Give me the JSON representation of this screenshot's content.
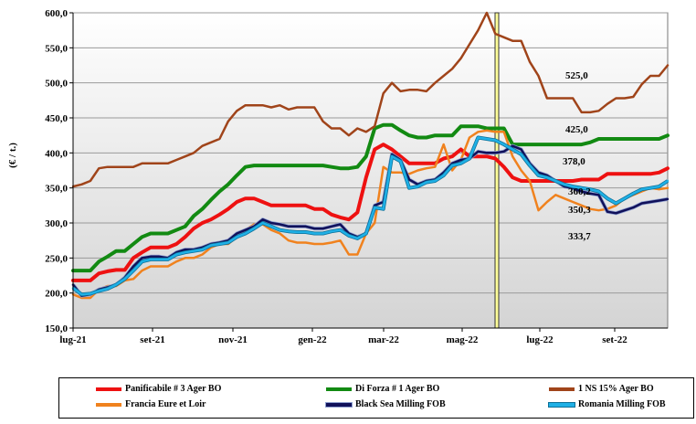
{
  "chart_data": {
    "type": "line",
    "ylabel": "(€ / t.)",
    "ylim": [
      150,
      600
    ],
    "yticks": [
      "150,0",
      "200,0",
      "250,0",
      "300,0",
      "350,0",
      "400,0",
      "450,0",
      "500,0",
      "550,0",
      "600,0"
    ],
    "ytick_values": [
      150,
      200,
      250,
      300,
      350,
      400,
      450,
      500,
      550,
      600
    ],
    "xlim": [
      0,
      56
    ],
    "xticks": [
      {
        "label": "lug-21",
        "pos": 0
      },
      {
        "label": "set-21",
        "pos": 8.6
      },
      {
        "label": "nov-21",
        "pos": 17.4
      },
      {
        "label": "gen-22",
        "pos": 26.1
      },
      {
        "label": "mar-22",
        "pos": 34.4
      },
      {
        "label": "mag-22",
        "pos": 43.0
      },
      {
        "label": "lug-22",
        "pos": 51.7
      },
      {
        "label": "set-22",
        "pos": 60.3
      }
    ],
    "highlight_band": [
      46.8,
      47.1
    ],
    "grid": true,
    "legend_position": "bottom",
    "annotations": [
      {
        "text": "525,0",
        "x": 56.2,
        "y": 510
      },
      {
        "text": "425,0",
        "x": 56.2,
        "y": 432
      },
      {
        "text": "378,0",
        "x": 56.2,
        "y": 386
      },
      {
        "text": "360,2",
        "x": 55.0,
        "y": 340
      },
      {
        "text": "350,3",
        "x": 55.2,
        "y": 320
      },
      {
        "text": "333,7",
        "x": 56.2,
        "y": 281
      }
    ],
    "series": [
      {
        "name": "Panificabile # 3 Ager BO",
        "color": "#ee1111",
        "width": 4,
        "values": [
          218,
          218,
          218,
          228,
          231,
          233,
          233,
          250,
          258,
          265,
          265,
          265,
          270,
          280,
          292,
          300,
          305,
          312,
          320,
          330,
          335,
          335,
          330,
          325,
          325,
          325,
          325,
          325,
          320,
          320,
          312,
          308,
          305,
          315,
          365,
          405,
          412,
          405,
          395,
          385,
          385,
          385,
          385,
          392,
          395,
          405,
          395,
          395,
          395,
          392,
          380,
          365,
          360,
          360,
          360,
          360,
          360,
          360,
          360,
          362,
          362,
          362,
          370,
          370,
          370,
          370,
          370,
          370,
          372,
          378
        ]
      },
      {
        "name": "Di Forza # 1 Ager BO",
        "color": "#128a12",
        "width": 4,
        "values": [
          232,
          232,
          232,
          245,
          252,
          260,
          260,
          270,
          280,
          285,
          285,
          285,
          290,
          295,
          310,
          320,
          333,
          345,
          355,
          368,
          380,
          382,
          382,
          382,
          382,
          382,
          382,
          382,
          382,
          382,
          380,
          378,
          378,
          380,
          395,
          435,
          440,
          440,
          432,
          425,
          422,
          422,
          425,
          425,
          425,
          438,
          438,
          438,
          435,
          435,
          435,
          412,
          412,
          412,
          412,
          412,
          412,
          412,
          412,
          412,
          415,
          420,
          420,
          420,
          420,
          420,
          420,
          420,
          420,
          425
        ]
      },
      {
        "name": "1 NS 15% Ager BO",
        "color": "#a0441a",
        "width": 2.5,
        "values": [
          352,
          355,
          360,
          378,
          380,
          380,
          380,
          380,
          385,
          385,
          385,
          385,
          390,
          395,
          400,
          410,
          415,
          420,
          445,
          460,
          468,
          468,
          468,
          465,
          468,
          462,
          465,
          465,
          465,
          445,
          435,
          435,
          425,
          435,
          430,
          438,
          485,
          500,
          488,
          490,
          490,
          488,
          500,
          510,
          520,
          535,
          555,
          575,
          600,
          570,
          565,
          560,
          560,
          530,
          510,
          478,
          478,
          478,
          478,
          458,
          458,
          460,
          470,
          478,
          478,
          480,
          498,
          510,
          510,
          525
        ]
      },
      {
        "name": "Francia Eure et Loir",
        "color": "#f0821e",
        "width": 2.5,
        "values": [
          198,
          193,
          193,
          205,
          210,
          210,
          218,
          220,
          232,
          238,
          238,
          238,
          245,
          250,
          250,
          255,
          265,
          270,
          270,
          280,
          290,
          298,
          298,
          290,
          285,
          275,
          272,
          272,
          270,
          270,
          272,
          275,
          255,
          255,
          285,
          300,
          380,
          372,
          372,
          370,
          375,
          378,
          380,
          412,
          375,
          390,
          422,
          430,
          432,
          430,
          430,
          395,
          375,
          360,
          318,
          330,
          340,
          335,
          330,
          325,
          320,
          318,
          320,
          325,
          335,
          340,
          345,
          350,
          348,
          350
        ]
      },
      {
        "name": "Black Sea Milling FOB",
        "color": "#10105a",
        "width": 2.5,
        "values": [
          212,
          196,
          198,
          205,
          208,
          212,
          222,
          238,
          250,
          252,
          252,
          250,
          258,
          262,
          262,
          265,
          270,
          272,
          275,
          285,
          290,
          295,
          305,
          300,
          298,
          295,
          295,
          295,
          292,
          292,
          295,
          298,
          285,
          280,
          285,
          325,
          330,
          398,
          390,
          362,
          355,
          360,
          362,
          372,
          385,
          390,
          392,
          402,
          400,
          400,
          402,
          410,
          405,
          385,
          372,
          368,
          360,
          352,
          350,
          345,
          342,
          340,
          316,
          314,
          318,
          322,
          328,
          330,
          332,
          334
        ]
      },
      {
        "name": "Romania Milling FOB",
        "color": "#1fb0e6",
        "width": 2.5,
        "values": [
          207,
          198,
          199,
          203,
          206,
          212,
          220,
          232,
          245,
          248,
          248,
          248,
          255,
          258,
          260,
          262,
          268,
          270,
          272,
          280,
          285,
          292,
          300,
          295,
          290,
          288,
          287,
          287,
          285,
          285,
          288,
          290,
          282,
          278,
          285,
          322,
          320,
          395,
          388,
          350,
          352,
          358,
          360,
          368,
          382,
          385,
          392,
          422,
          420,
          418,
          412,
          405,
          398,
          382,
          368,
          365,
          360,
          355,
          352,
          350,
          348,
          345,
          335,
          328,
          335,
          342,
          348,
          350,
          352,
          360
        ]
      }
    ]
  }
}
